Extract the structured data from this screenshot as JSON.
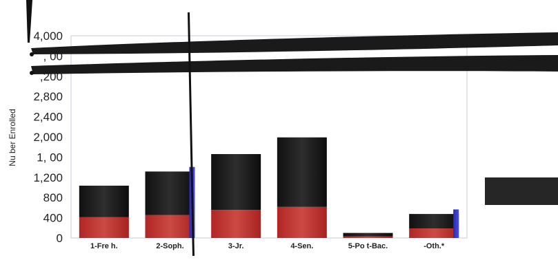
{
  "chart_data": {
    "type": "bar",
    "stacked": true,
    "categories": [
      "1-Fre  h.",
      "2-Soph.",
      "3-Jr.",
      "4-Sen.",
      "5-Po  t-Bac.",
      "-Oth.*"
    ],
    "y_tick_labels": [
      "0",
      "400",
      "800",
      "1,200",
      "1,  00",
      "2,000",
      "2,400",
      "2,800",
      ",200",
      ",  00",
      "4,000"
    ],
    "ylabel": "Nu   ber Enrolled",
    "ylim": [
      0,
      4000
    ],
    "series": [
      {
        "values": [
          415,
          455,
          555,
          615,
          30,
          190
        ],
        "color": "#c0302e"
      },
      {
        "values": [
          620,
          860,
          1105,
          1375,
          70,
          285
        ],
        "color": "#1a1a1a"
      },
      {
        "values": [
          0,
          10,
          0,
          0,
          0,
          10
        ],
        "color": "#3a3ac8"
      }
    ],
    "grid": false,
    "legend": "none"
  }
}
